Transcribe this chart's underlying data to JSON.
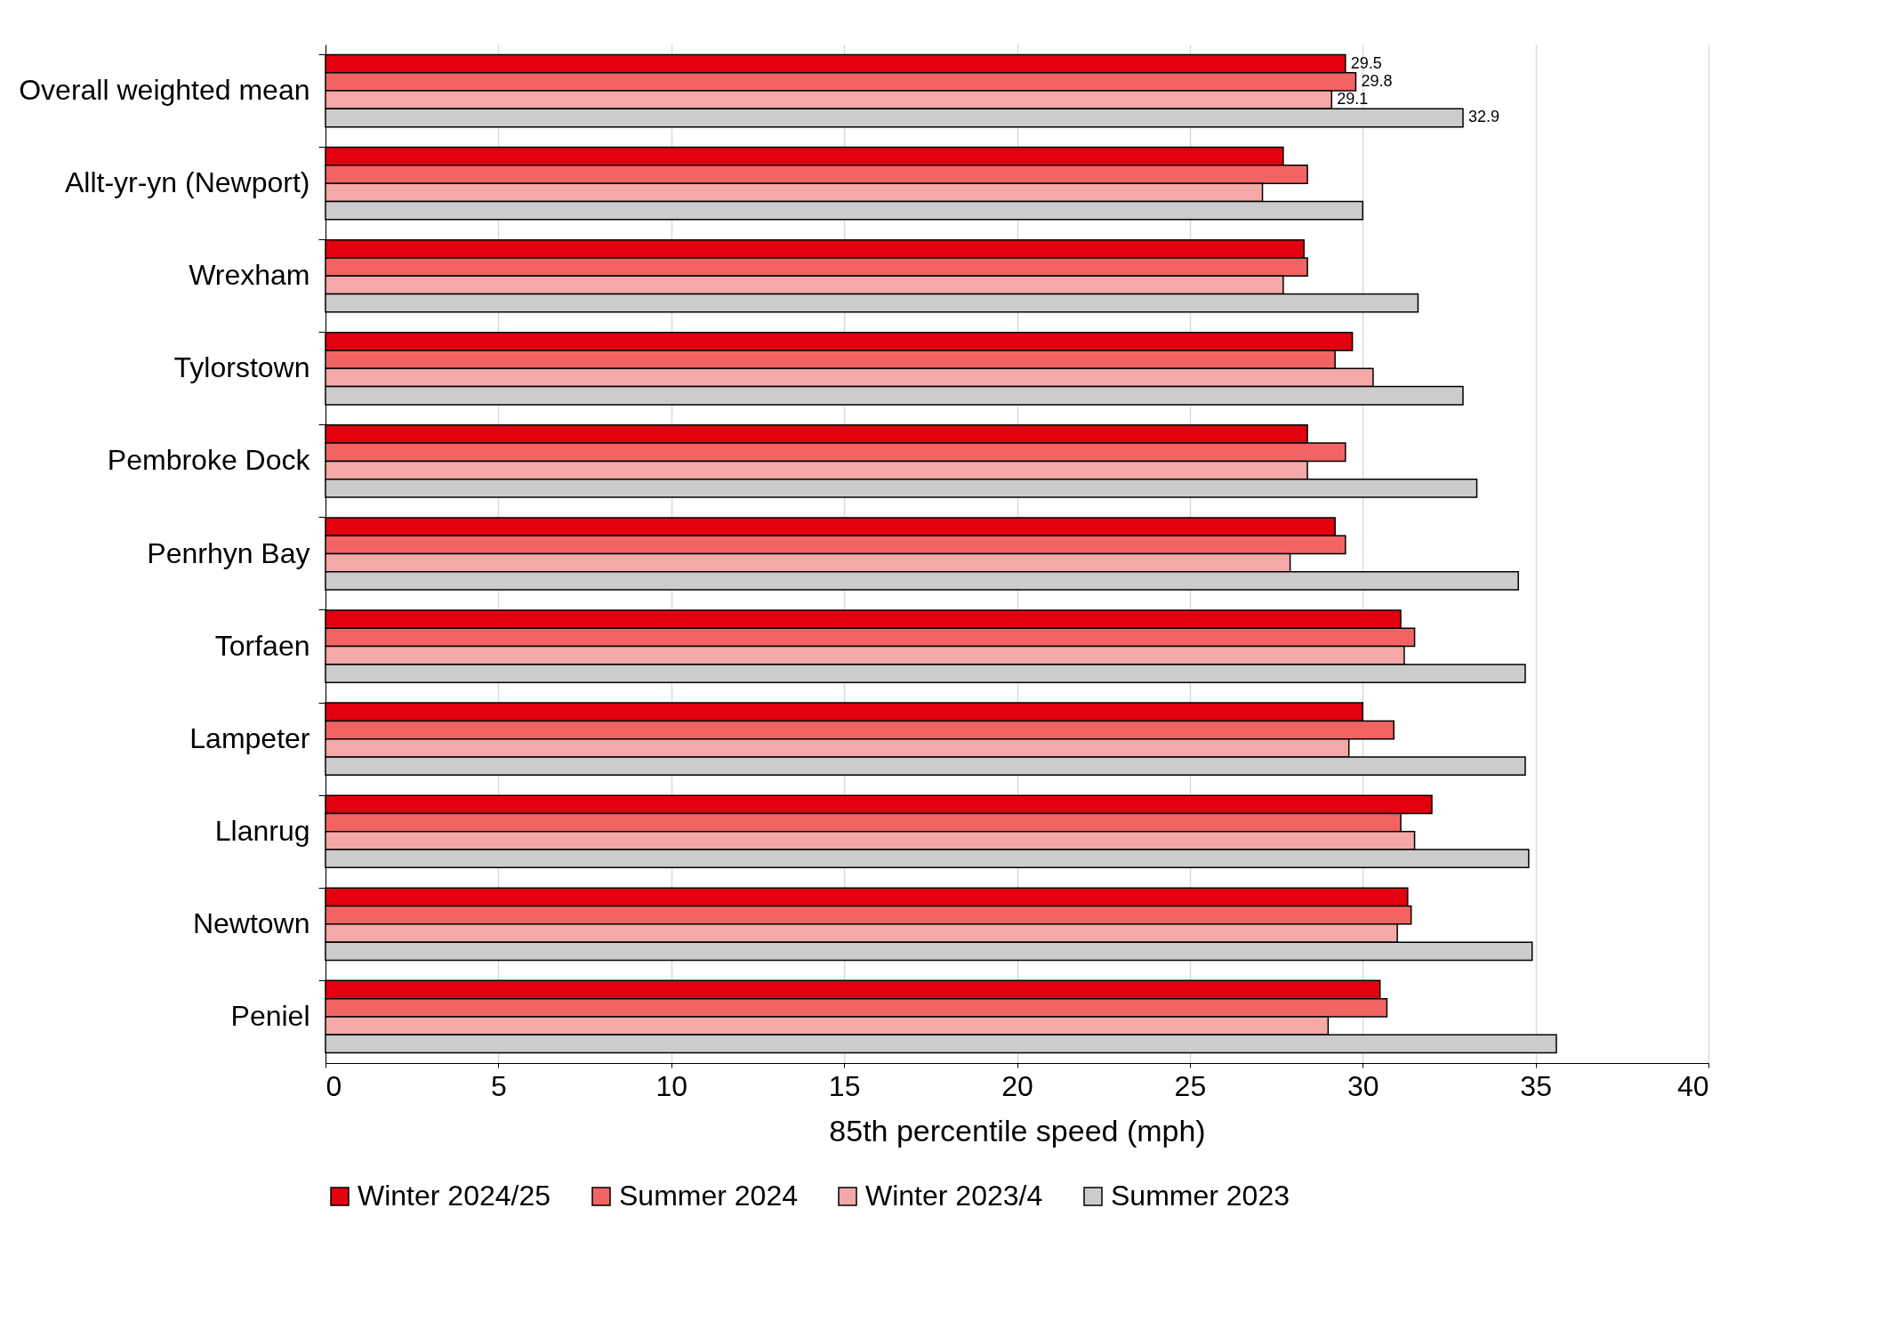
{
  "chart_data": {
    "type": "bar",
    "orientation": "horizontal",
    "xlabel": "85th percentile speed (mph)",
    "categories": [
      "Overall weighted mean",
      "Allt-yr-yn (Newport)",
      "Wrexham",
      "Tylorstown",
      "Pembroke Dock",
      "Penrhyn Bay",
      "Torfaen",
      "Lampeter",
      "Llanrug",
      "Newtown",
      "Peniel"
    ],
    "series": [
      {
        "name": "Winter 2024/25",
        "color": "#e3000f",
        "values": [
          29.5,
          27.7,
          28.3,
          29.7,
          28.4,
          29.2,
          31.1,
          30.0,
          32.0,
          31.3,
          30.5
        ],
        "value_labels": [
          "29.5",
          null,
          null,
          null,
          null,
          null,
          null,
          null,
          null,
          null,
          null
        ]
      },
      {
        "name": "Summer 2024",
        "color": "#f26464",
        "values": [
          29.8,
          28.4,
          28.4,
          29.2,
          29.5,
          29.5,
          31.5,
          30.9,
          31.1,
          31.4,
          30.7
        ],
        "value_labels": [
          "29.8",
          null,
          null,
          null,
          null,
          null,
          null,
          null,
          null,
          null,
          null
        ]
      },
      {
        "name": "Winter 2023/4",
        "color": "#f5a8a8",
        "values": [
          29.1,
          27.1,
          27.7,
          30.3,
          28.4,
          27.9,
          31.2,
          29.6,
          31.5,
          31.0,
          29.0
        ],
        "value_labels": [
          "29.1",
          null,
          null,
          null,
          null,
          null,
          null,
          null,
          null,
          null,
          null
        ]
      },
      {
        "name": "Summer 2023",
        "color": "#cccccc",
        "values": [
          32.9,
          30.0,
          31.6,
          32.9,
          33.3,
          34.5,
          34.7,
          34.7,
          34.8,
          34.9,
          35.6
        ],
        "value_labels": [
          "32.9",
          null,
          null,
          null,
          null,
          null,
          null,
          null,
          null,
          null,
          null
        ]
      }
    ],
    "xlim": [
      0,
      40
    ],
    "xticks": [
      0,
      5,
      10,
      15,
      20,
      25,
      30,
      35,
      40
    ],
    "grid": "x",
    "legend": "bottom"
  }
}
